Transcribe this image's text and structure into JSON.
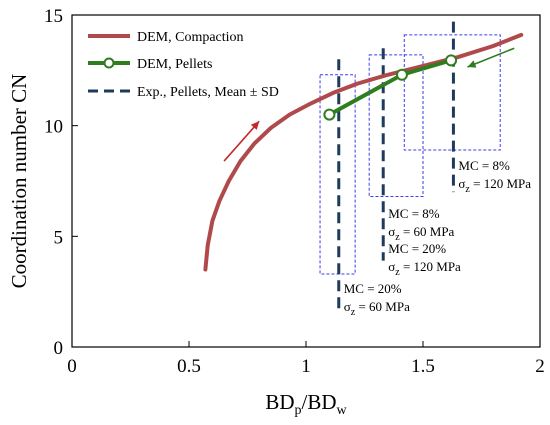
{
  "chart_data": {
    "type": "line",
    "xlabel": {
      "main": "BD",
      "sub1": "p",
      "slash": "/BD",
      "sub2": "w"
    },
    "ylabel": "Coordination number  CN",
    "xlim": [
      0,
      2
    ],
    "ylim": [
      0,
      15
    ],
    "xticks": [
      0,
      0.5,
      1,
      1.5,
      2
    ],
    "xtick_labels": [
      "0",
      "0.5",
      "1",
      "1.5",
      "2"
    ],
    "yticks": [
      0,
      5,
      10,
      15
    ],
    "ytick_labels": [
      "0",
      "5",
      "10",
      "15"
    ],
    "legend": {
      "placement": "top-left",
      "entries": [
        "DEM, Compaction",
        "DEM, Pellets",
        "Exp., Pellets, Mean ± SD"
      ]
    },
    "series": [
      {
        "name": "DEM, Compaction",
        "color": "#b04a4a",
        "style": "solid",
        "x": [
          0.57,
          0.58,
          0.6,
          0.63,
          0.67,
          0.72,
          0.78,
          0.85,
          0.93,
          1.02,
          1.12,
          1.22,
          1.35,
          1.5,
          1.65,
          1.8,
          1.92
        ],
        "y": [
          3.5,
          4.6,
          5.7,
          6.6,
          7.5,
          8.4,
          9.2,
          9.9,
          10.5,
          11.0,
          11.5,
          11.9,
          12.3,
          12.7,
          13.1,
          13.6,
          14.1
        ]
      },
      {
        "name": "DEM, Pellets",
        "color": "#2e7d1e",
        "style": "solid-markers",
        "x": [
          1.1,
          1.41,
          1.62
        ],
        "y": [
          10.5,
          12.3,
          12.95
        ]
      }
    ],
    "experiments": [
      {
        "x": 1.14,
        "mean": 10.7,
        "lower": 1.6,
        "upper": 13.0,
        "box_x": [
          1.06,
          1.21
        ],
        "box_y": [
          3.3,
          12.3
        ],
        "label_mc": "MC = 20%",
        "label_sz": "60 MPa"
      },
      {
        "x": 1.33,
        "mean": 11.8,
        "lower": 3.9,
        "upper": 13.5,
        "box_x": [
          1.27,
          1.5
        ],
        "box_y": [
          6.8,
          13.2
        ],
        "label_mc_a": "MC = 8%",
        "label_sz_a": "60 MPa",
        "label_mc_b": "MC = 20%",
        "label_sz_b": "120 MPa"
      },
      {
        "x": 1.63,
        "mean": 12.9,
        "lower": 7.0,
        "upper": 14.7,
        "box_x": [
          1.42,
          1.83
        ],
        "box_y": [
          8.9,
          14.1
        ],
        "label_mc": "MC = 8%",
        "label_sz": "120 MPa"
      }
    ],
    "arrows": [
      {
        "color": "#c62828",
        "from": [
          0.65,
          8.4
        ],
        "to": [
          0.8,
          10.2
        ]
      },
      {
        "color": "#2e7d1e",
        "from": [
          1.89,
          13.5
        ],
        "to": [
          1.69,
          12.65
        ]
      }
    ],
    "sigma_symbol": "σ",
    "sigma_sub": "z",
    "equals": " = "
  }
}
